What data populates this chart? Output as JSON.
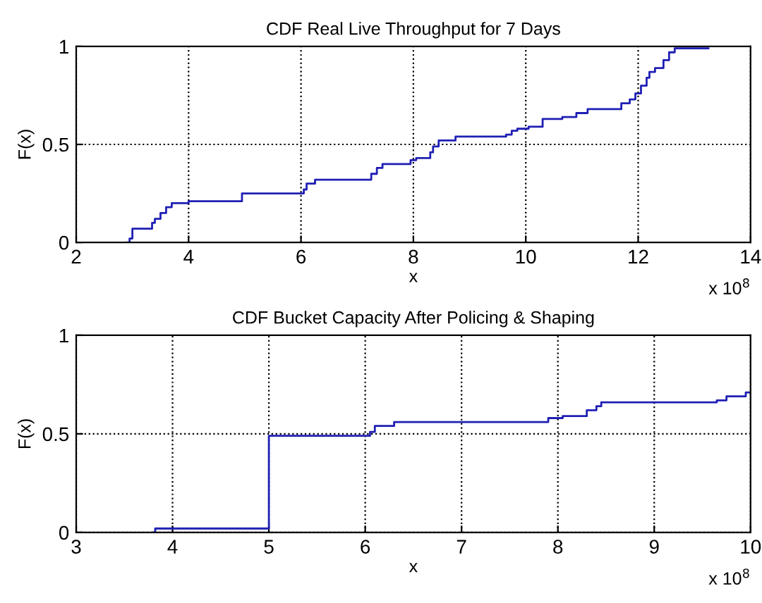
{
  "chart_data": [
    {
      "type": "step",
      "title": "CDF Real Live Throughput for 7 Days",
      "xlabel": "x",
      "ylabel": "F(x)",
      "annotations": [
        "x 10$^{8}$"
      ],
      "grid": true,
      "line_style": "solid",
      "xlim": [
        2,
        14
      ],
      "xticks": [
        2,
        4,
        6,
        8,
        10,
        12,
        14
      ],
      "ylim": [
        0,
        1
      ],
      "yticks": [
        0,
        0.5,
        1
      ],
      "series": [
        {
          "color": "#1f1fb4",
          "x": [
            2.9,
            2.95,
            3.0,
            3.35,
            3.4,
            3.5,
            3.6,
            3.7,
            4.0,
            4.95,
            6.05,
            6.1,
            6.25,
            7.25,
            7.35,
            7.45,
            7.95,
            8.05,
            8.3,
            8.35,
            8.45,
            8.75,
            9.65,
            9.75,
            9.85,
            10.05,
            10.3,
            10.65,
            10.9,
            11.1,
            11.7,
            11.85,
            11.95,
            12.05,
            12.15,
            12.2,
            12.3,
            12.45,
            12.55,
            12.65,
            13.25
          ],
          "values": [
            0,
            0.02,
            0.07,
            0.1,
            0.12,
            0.15,
            0.18,
            0.2,
            0.21,
            0.25,
            0.27,
            0.3,
            0.32,
            0.35,
            0.38,
            0.4,
            0.42,
            0.43,
            0.46,
            0.49,
            0.52,
            0.54,
            0.55,
            0.57,
            0.58,
            0.59,
            0.63,
            0.64,
            0.66,
            0.68,
            0.71,
            0.73,
            0.76,
            0.8,
            0.84,
            0.87,
            0.89,
            0.93,
            0.97,
            0.99,
            0.99
          ]
        }
      ]
    },
    {
      "type": "step",
      "title": "CDF Bucket Capacity After Policing & Shaping",
      "xlabel": "x",
      "ylabel": "F(x)",
      "annotations": [
        "x 10$^{8}$"
      ],
      "grid": true,
      "line_style": "solid",
      "xlim": [
        3,
        10
      ],
      "xticks": [
        3,
        4,
        5,
        6,
        7,
        8,
        9,
        10
      ],
      "ylim": [
        0,
        1
      ],
      "yticks": [
        0,
        0.5,
        1
      ],
      "series": [
        {
          "color": "#1f1fb4",
          "x": [
            3.8,
            3.82,
            5.0,
            6.05,
            6.1,
            6.3,
            7.9,
            8.05,
            8.3,
            8.4,
            8.45,
            9.65,
            9.75,
            9.95,
            10
          ],
          "values": [
            0,
            0.02,
            0.49,
            0.51,
            0.54,
            0.56,
            0.58,
            0.59,
            0.62,
            0.64,
            0.66,
            0.67,
            0.69,
            0.71,
            0.71
          ]
        }
      ]
    }
  ]
}
